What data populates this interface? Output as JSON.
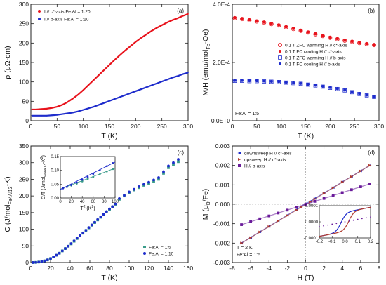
{
  "chart_data": [
    {
      "type": "line",
      "panel_label": "(a)",
      "xlabel": "T (K)",
      "ylabel": "ρ (μΩ-cm)",
      "xlim": [
        0,
        300
      ],
      "ylim": [
        0,
        300
      ],
      "xticks": [
        0,
        50,
        100,
        150,
        200,
        250,
        300
      ],
      "yticks": [
        0,
        50,
        100,
        150,
        200,
        250,
        300
      ],
      "legend_position": "top-left",
      "series": [
        {
          "name": "I // c*-axis Fe:Al = 1:20",
          "color": "#e8131c",
          "x": [
            2,
            10,
            20,
            30,
            40,
            50,
            60,
            70,
            80,
            90,
            100,
            110,
            120,
            130,
            140,
            150,
            160,
            170,
            180,
            190,
            200,
            210,
            220,
            230,
            240,
            250,
            260,
            270,
            280,
            290,
            300
          ],
          "y": [
            29,
            29,
            30,
            31,
            33,
            36,
            41,
            48,
            57,
            67,
            79,
            92,
            105,
            118,
            131,
            144,
            157,
            169,
            181,
            192,
            203,
            213,
            222,
            231,
            239,
            246,
            253,
            259,
            264,
            270,
            275
          ]
        },
        {
          "name": "I // b-axis  Fe:Al = 1:10",
          "color": "#1e2ccc",
          "x": [
            2,
            10,
            20,
            30,
            40,
            50,
            60,
            70,
            80,
            90,
            100,
            110,
            120,
            130,
            140,
            150,
            160,
            170,
            180,
            190,
            200,
            210,
            220,
            230,
            240,
            250,
            260,
            270,
            280,
            290,
            300
          ],
          "y": [
            13,
            13,
            13,
            13,
            14,
            15,
            17,
            19,
            21,
            24,
            28,
            32,
            36,
            41,
            46,
            51,
            56,
            61,
            66,
            71,
            76,
            81,
            86,
            91,
            96,
            101,
            106,
            111,
            115,
            120,
            124
          ]
        }
      ]
    },
    {
      "type": "scatter",
      "panel_label": "(b)",
      "xlabel": "T (K)",
      "ylabel": "M/H (emu/mol",
      "ylabel_sub": "Fe",
      "ylabel_tail": "-Oe)",
      "xlim": [
        0,
        300
      ],
      "ylim": [
        0,
        0.0004
      ],
      "xticks": [
        0,
        50,
        100,
        150,
        200,
        250,
        300
      ],
      "yticks": [
        0,
        0.0002,
        0.0004
      ],
      "ytick_labels": [
        "0.0E+0",
        "2.0E-4",
        "4.0E-4"
      ],
      "annotation": "Fe:Al = 1:5",
      "legend_position": "center-right",
      "series": [
        {
          "name": "0.1 T ZFC warming H // c*-axis",
          "color": "#e8131c",
          "marker": "open-circle",
          "x": [
            5,
            20,
            35,
            50,
            65,
            80,
            95,
            110,
            125,
            140,
            155,
            170,
            185,
            200,
            215,
            230,
            245,
            260,
            275,
            290
          ],
          "y": [
            0.000352,
            0.000349,
            0.000345,
            0.000341,
            0.000337,
            0.000332,
            0.000327,
            0.000321,
            0.000315,
            0.000309,
            0.000303,
            0.000297,
            0.000291,
            0.000285,
            0.00028,
            0.000275,
            0.000271,
            0.000267,
            0.000263,
            0.00026
          ]
        },
        {
          "name": "0.1 T FC cooling H // c*-axis",
          "color": "#e8131c",
          "marker": "filled-dot",
          "x": [
            5,
            20,
            35,
            50,
            65,
            80,
            95,
            110,
            125,
            140,
            155,
            170,
            185,
            200,
            215,
            230,
            245,
            260,
            275,
            290
          ],
          "y": [
            0.000353,
            0.00035,
            0.000346,
            0.000342,
            0.000338,
            0.000333,
            0.000328,
            0.000322,
            0.000316,
            0.00031,
            0.000304,
            0.000298,
            0.000292,
            0.000286,
            0.000281,
            0.000276,
            0.000272,
            0.000268,
            0.000264,
            0.000261
          ]
        },
        {
          "name": "0.1 T ZFC warming H // b-axis",
          "color": "#1e2ccc",
          "marker": "open-square",
          "x": [
            5,
            20,
            35,
            50,
            65,
            80,
            95,
            110,
            125,
            140,
            155,
            170,
            185,
            200,
            215,
            230,
            245,
            260,
            275,
            290
          ],
          "y": [
            0.000137,
            0.000137,
            0.000136,
            0.000136,
            0.000135,
            0.000134,
            0.000133,
            0.000131,
            0.000129,
            0.000127,
            0.000124,
            0.000121,
            0.000117,
            0.000113,
            0.000109,
            0.000104,
            9.8e-05,
            9.2e-05,
            8.7e-05,
            8.2e-05
          ]
        },
        {
          "name": "0.1 T FC cooling H // b-axis",
          "color": "#1e2ccc",
          "marker": "filled-dot",
          "x": [
            5,
            20,
            35,
            50,
            65,
            80,
            95,
            110,
            125,
            140,
            155,
            170,
            185,
            200,
            215,
            230,
            245,
            260,
            275,
            290
          ],
          "y": [
            0.000138,
            0.000138,
            0.000137,
            0.000137,
            0.000136,
            0.000135,
            0.000134,
            0.000132,
            0.00013,
            0.000128,
            0.000125,
            0.000122,
            0.000118,
            0.000114,
            0.00011,
            0.000105,
            9.9e-05,
            9.3e-05,
            8.8e-05,
            8.3e-05
          ]
        }
      ]
    },
    {
      "type": "scatter",
      "panel_label": "(c)",
      "xlabel": "T (K)",
      "ylabel": "C (J/mol",
      "ylabel_sub": "Fe4Al13",
      "ylabel_tail": "-K)",
      "xlim": [
        0,
        160
      ],
      "ylim": [
        0,
        350
      ],
      "xticks": [
        0,
        20,
        40,
        60,
        80,
        100,
        120,
        140,
        160
      ],
      "yticks": [
        0,
        50,
        100,
        150,
        200,
        250,
        300,
        350
      ],
      "legend_position": "bottom-right",
      "series": [
        {
          "name": "Fe:Al = 1:5",
          "color": "#3a9c8a",
          "marker": "filled-square",
          "x": [
            2,
            5,
            8,
            11,
            14,
            17,
            20,
            23,
            26,
            29,
            32,
            35,
            38,
            41,
            44,
            47,
            50,
            53,
            56,
            59,
            62,
            65,
            68,
            71,
            74,
            77,
            80,
            83,
            86,
            90,
            95,
            100,
            105,
            110,
            115,
            120,
            125,
            130,
            135,
            140,
            145,
            150
          ],
          "y": [
            0.1,
            0.5,
            1.5,
            3,
            5,
            8,
            12,
            17,
            22,
            28,
            35,
            42,
            49,
            56,
            64,
            72,
            80,
            88,
            96,
            104,
            112,
            120,
            128,
            136,
            144,
            152,
            160,
            167,
            175,
            190,
            200,
            210,
            218,
            225,
            232,
            238,
            244,
            250,
            268,
            285,
            295,
            303
          ]
        },
        {
          "name": "Fe:Al = 1:10",
          "color": "#1e2ccc",
          "marker": "filled-dot",
          "x": [
            2,
            5,
            8,
            11,
            14,
            17,
            20,
            23,
            26,
            29,
            32,
            35,
            38,
            41,
            44,
            47,
            50,
            53,
            56,
            59,
            62,
            65,
            68,
            71,
            74,
            77,
            80,
            83,
            86,
            90,
            95,
            100,
            105,
            110,
            115,
            120,
            125,
            130,
            135,
            140,
            145,
            150
          ],
          "y": [
            0.1,
            0.5,
            1.5,
            3,
            5,
            8,
            12,
            17,
            22,
            28,
            35,
            42,
            49,
            57,
            65,
            73,
            81,
            89,
            97,
            105,
            113,
            121,
            129,
            137,
            145,
            153,
            161,
            168,
            176,
            192,
            202,
            212,
            220,
            228,
            235,
            241,
            248,
            255,
            273,
            290,
            300,
            310
          ]
        }
      ],
      "inset": {
        "xlabel": "T",
        "xlabel_sup": "2",
        "xlabel_tail": " (K",
        "xlabel_tail_sup": "2",
        "xlabel_end": ")",
        "ylabel": "C/T (J/mol",
        "ylabel_sub": "Fe4Al13",
        "ylabel_tail": "-K",
        "ylabel_tail_sup": "2",
        "ylabel_end": ")",
        "xlim": [
          0,
          100
        ],
        "ylim": [
          0,
          0.15
        ],
        "xticks": [
          0,
          20,
          40,
          60,
          80,
          100
        ],
        "yticks": [
          0,
          0.05,
          0.1,
          0.15
        ],
        "ytick_labels": [
          "0.00",
          "0.05",
          "0.10",
          "0.15"
        ],
        "series": [
          {
            "name": "Fe:Al = 1:5",
            "color": "#3a9c8a",
            "x": [
              5,
              12,
              20,
              30,
              40,
              50,
              60,
              72,
              85,
              96
            ],
            "y": [
              0.036,
              0.04,
              0.045,
              0.052,
              0.06,
              0.068,
              0.076,
              0.085,
              0.096,
              0.105
            ],
            "fit": [
              [
                0,
                0.032
              ],
              [
                100,
                0.108
              ]
            ]
          },
          {
            "name": "Fe:Al = 1:10",
            "color": "#1e2ccc",
            "x": [
              5,
              12,
              20,
              30,
              40,
              50,
              60,
              72,
              85,
              96
            ],
            "y": [
              0.035,
              0.04,
              0.047,
              0.056,
              0.066,
              0.076,
              0.087,
              0.1,
              0.115,
              0.126
            ],
            "fit": [
              [
                0,
                0.031
              ],
              [
                100,
                0.13
              ]
            ]
          }
        ]
      }
    },
    {
      "type": "scatter",
      "panel_label": "(d)",
      "xlabel": "H (T)",
      "ylabel": "M (μ",
      "ylabel_sub": "B",
      "ylabel_tail": "/Fe)",
      "xlim": [
        -8,
        8
      ],
      "ylim": [
        -0.003,
        0.003
      ],
      "xticks": [
        -8,
        -6,
        -4,
        -2,
        0,
        2,
        4,
        6,
        8
      ],
      "yticks": [
        -0.003,
        -0.002,
        -0.001,
        0,
        0.001,
        0.002,
        0.003
      ],
      "ytick_labels": [
        "-0.003",
        "-0.002",
        "-0.001",
        "0.000",
        "0.001",
        "0.002",
        "0.003"
      ],
      "annotation_lines": [
        "T = 2 K",
        "Fe:Al = 1:5"
      ],
      "legend_position": "top-left",
      "series": [
        {
          "name": "downsweep H // c*-axis",
          "color": "#1e2ccc",
          "marker": "left-triangle",
          "x": [
            7,
            6,
            5,
            4,
            3,
            2,
            1,
            0.5,
            0,
            -0.5,
            -1,
            -2,
            -3,
            -4,
            -5,
            -6,
            -7
          ],
          "y": [
            0.002,
            0.00172,
            0.00143,
            0.00115,
            0.00086,
            0.00058,
            0.0003,
            0.00015,
            3e-05,
            -0.00012,
            -0.00027,
            -0.00056,
            -0.00085,
            -0.00114,
            -0.00142,
            -0.00171,
            -0.002
          ]
        },
        {
          "name": "upsweep H // c*-axis",
          "color": "#b03a2e",
          "marker": "right-triangle",
          "x": [
            -7,
            -6,
            -5,
            -4,
            -3,
            -2,
            -1,
            -0.5,
            0,
            0.5,
            1,
            2,
            3,
            4,
            5,
            6,
            7
          ],
          "y": [
            -0.002,
            -0.00172,
            -0.00143,
            -0.00115,
            -0.00086,
            -0.00058,
            -0.0003,
            -0.00015,
            -3e-05,
            0.00012,
            0.00027,
            0.00056,
            0.00085,
            0.00114,
            0.00142,
            0.00171,
            0.002
          ]
        },
        {
          "name": "H // b-axis",
          "color": "#6a1b9a",
          "marker": "filled-square",
          "x": [
            -7,
            -6,
            -5,
            -4,
            -3,
            -2,
            -1,
            0,
            1,
            2,
            3,
            4,
            5,
            6,
            7
          ],
          "y": [
            -0.00105,
            -0.0009,
            -0.00075,
            -0.0006,
            -0.00045,
            -0.0003,
            -0.00015,
            0,
            0.00015,
            0.0003,
            0.00045,
            0.0006,
            0.00075,
            0.0009,
            0.00105
          ]
        }
      ],
      "inset": {
        "xlim": [
          -0.2,
          0.2
        ],
        "ylim": [
          -0.0001,
          0.0001
        ],
        "xticks": [
          -0.2,
          -0.1,
          0,
          0.1,
          0.2
        ],
        "xtick_labels": [
          "-0.2",
          "-0.1",
          "0.0",
          "0.1",
          "0.2"
        ],
        "yticks": [
          -0.0001,
          0,
          0.0001
        ],
        "ytick_labels": [
          "-0.0001",
          "0.0000",
          "0.0001"
        ]
      }
    }
  ]
}
